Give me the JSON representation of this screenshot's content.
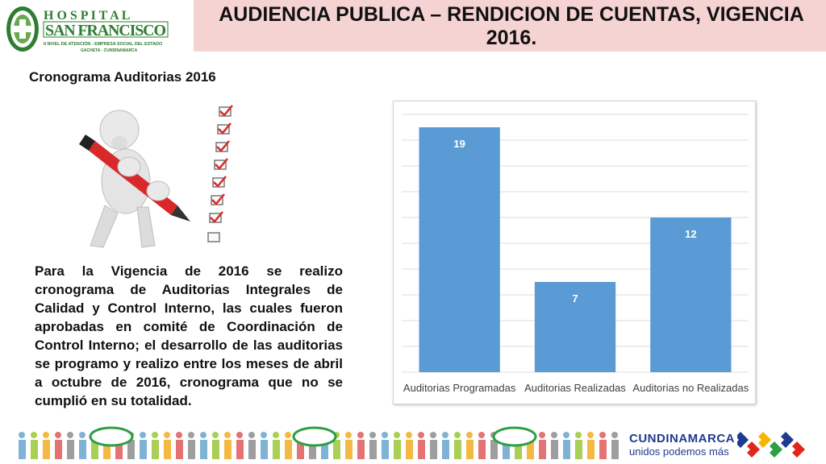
{
  "header": {
    "logo": {
      "line1": "H O S P I T A L",
      "line2": "SAN FRANCISCO",
      "line3": "II NIVEL DE ATENCIÓN - EMPRESA SOCIAL DEL ESTADO",
      "line4": "GACHETA - CUNDINAMARCA",
      "icon": "hospital-cross-emblem"
    },
    "title": "AUDIENCIA PUBLICA – RENDICION DE CUENTAS, VIGENCIA 2016.",
    "band_color": "#f5d3d3"
  },
  "section_title": "Cronograma Auditorias 2016",
  "paragraph": "Para la Vigencia de 2016 se realizo cronograma de Auditorias Integrales de Calidad y Control Interno, las cuales fueron aprobadas en comité de Coordinación de Control Interno; el desarrollo de las auditorias se programo y realizo entre los meses de abril a octubre de 2016, cronograma que no se cumplió en su totalidad.",
  "illustration": {
    "icon": "person-checklist-icon"
  },
  "chart_data": {
    "type": "bar",
    "categories": [
      "Auditorias Programadas",
      "Auditorias Realizadas",
      "Auditorias no Realizadas"
    ],
    "values": [
      19,
      7,
      12
    ],
    "ylim": [
      0,
      20
    ],
    "grid": true,
    "bar_color": "#5b9bd5",
    "title": "",
    "xlabel": "",
    "ylabel": ""
  },
  "footer": {
    "brand_name": "CUNDINAMARCA",
    "brand_tagline": "unidos podemos más",
    "brand_colors": [
      "#1f3b8f",
      "#e1261c",
      "#f7b500",
      "#2e9e45"
    ]
  }
}
